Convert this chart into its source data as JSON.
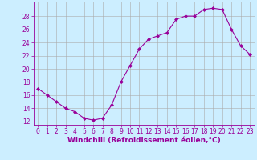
{
  "hours": [
    0,
    1,
    2,
    3,
    4,
    5,
    6,
    7,
    8,
    9,
    10,
    11,
    12,
    13,
    14,
    15,
    16,
    17,
    18,
    19,
    20,
    21,
    22,
    23
  ],
  "values": [
    17,
    16,
    15,
    14,
    13.5,
    12.5,
    12.2,
    12.5,
    14.5,
    18,
    20.5,
    23,
    24.5,
    25,
    25.5,
    27.5,
    28,
    28,
    29,
    29.2,
    29,
    26,
    23.5,
    22.2
  ],
  "line_color": "#990099",
  "marker": "D",
  "marker_size": 2,
  "bg_color": "#cceeff",
  "grid_color": "#aaaaaa",
  "xlabel": "Windchill (Refroidissement éolien,°C)",
  "xlim": [
    -0.5,
    23.5
  ],
  "ylim": [
    11.5,
    30.2
  ],
  "yticks": [
    12,
    14,
    16,
    18,
    20,
    22,
    24,
    26,
    28
  ],
  "xticks": [
    0,
    1,
    2,
    3,
    4,
    5,
    6,
    7,
    8,
    9,
    10,
    11,
    12,
    13,
    14,
    15,
    16,
    17,
    18,
    19,
    20,
    21,
    22,
    23
  ],
  "tick_color": "#990099",
  "label_color": "#990099",
  "tick_fontsize": 5.5,
  "xlabel_fontsize": 6.5
}
